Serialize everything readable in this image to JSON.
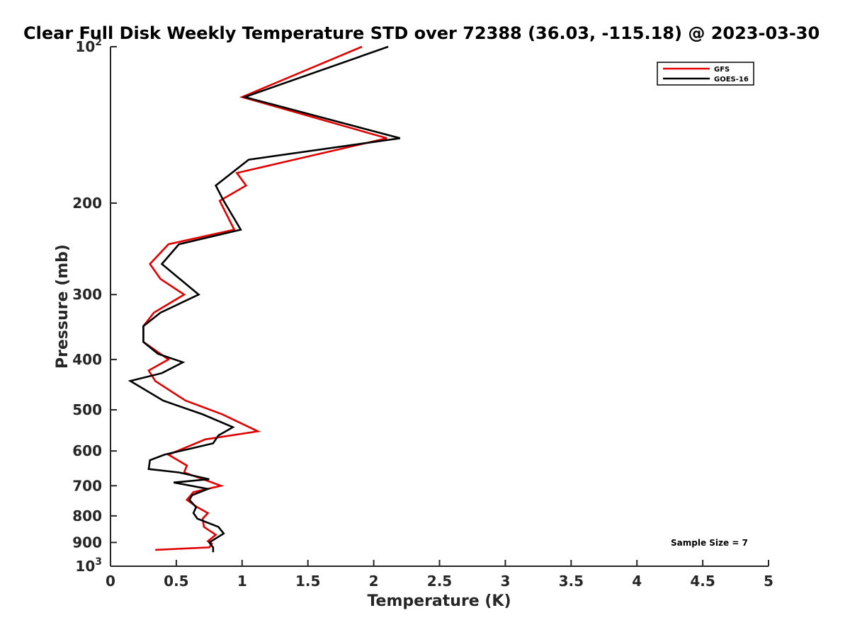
{
  "chart_data": {
    "type": "line",
    "title": "Clear Full Disk Weekly Temperature STD over 72388 (36.03, -115.18) @ 2023-03-30",
    "xlabel": "Temperature (K)",
    "ylabel": "Pressure (mb)",
    "xlim": [
      0,
      5
    ],
    "ylim": [
      100,
      1000
    ],
    "y_scale": "log",
    "y_reversed": true,
    "xticks": [
      0,
      0.5,
      1,
      1.5,
      2,
      2.5,
      3,
      3.5,
      4,
      4.5,
      5
    ],
    "xtick_labels": [
      "0",
      "0.5",
      "1",
      "1.5",
      "2",
      "2.5",
      "3",
      "3.5",
      "4",
      "4.5",
      "5"
    ],
    "yticks": [
      100,
      200,
      300,
      400,
      500,
      600,
      700,
      800,
      900,
      1000
    ],
    "ytick_labels": [
      {
        "base": "10",
        "exp": "2"
      },
      {
        "base": "200",
        "exp": ""
      },
      {
        "base": "300",
        "exp": ""
      },
      {
        "base": "400",
        "exp": ""
      },
      {
        "base": "500",
        "exp": ""
      },
      {
        "base": "600",
        "exp": ""
      },
      {
        "base": "700",
        "exp": ""
      },
      {
        "base": "800",
        "exp": ""
      },
      {
        "base": "900",
        "exp": ""
      },
      {
        "base": "10",
        "exp": "3"
      }
    ],
    "grid": false,
    "legend_position": "top-right",
    "series": [
      {
        "name": "GFS",
        "color": "#e00000",
        "points": [
          [
            1.91,
            100
          ],
          [
            1.0,
            125
          ],
          [
            2.1,
            150
          ],
          [
            0.96,
            175
          ],
          [
            1.03,
            185
          ],
          [
            0.83,
            198
          ],
          [
            0.94,
            225
          ],
          [
            0.44,
            240
          ],
          [
            0.3,
            262
          ],
          [
            0.38,
            280
          ],
          [
            0.56,
            300
          ],
          [
            0.33,
            325
          ],
          [
            0.25,
            345
          ],
          [
            0.25,
            370
          ],
          [
            0.44,
            400
          ],
          [
            0.29,
            420
          ],
          [
            0.34,
            440
          ],
          [
            0.57,
            480
          ],
          [
            0.85,
            510
          ],
          [
            1.12,
            550
          ],
          [
            0.72,
            570
          ],
          [
            0.44,
            610
          ],
          [
            0.58,
            640
          ],
          [
            0.56,
            660
          ],
          [
            0.84,
            700
          ],
          [
            0.63,
            720
          ],
          [
            0.58,
            745
          ],
          [
            0.66,
            770
          ],
          [
            0.74,
            790
          ],
          [
            0.7,
            810
          ],
          [
            0.71,
            840
          ],
          [
            0.8,
            870
          ],
          [
            0.74,
            895
          ],
          [
            0.77,
            905
          ],
          [
            0.75,
            920
          ],
          [
            0.34,
            930
          ]
        ]
      },
      {
        "name": "GOES-16",
        "color": "#000000",
        "points": [
          [
            2.11,
            100
          ],
          [
            1.02,
            125
          ],
          [
            2.2,
            150
          ],
          [
            1.05,
            165
          ],
          [
            0.8,
            185
          ],
          [
            0.86,
            198
          ],
          [
            0.99,
            225
          ],
          [
            0.52,
            240
          ],
          [
            0.39,
            262
          ],
          [
            0.67,
            300
          ],
          [
            0.38,
            325
          ],
          [
            0.25,
            345
          ],
          [
            0.25,
            370
          ],
          [
            0.36,
            390
          ],
          [
            0.55,
            405
          ],
          [
            0.39,
            425
          ],
          [
            0.15,
            440
          ],
          [
            0.4,
            480
          ],
          [
            0.7,
            510
          ],
          [
            0.93,
            540
          ],
          [
            0.82,
            560
          ],
          [
            0.78,
            580
          ],
          [
            0.41,
            610
          ],
          [
            0.3,
            625
          ],
          [
            0.29,
            650
          ],
          [
            0.52,
            660
          ],
          [
            0.75,
            680
          ],
          [
            0.48,
            690
          ],
          [
            0.74,
            710
          ],
          [
            0.62,
            730
          ],
          [
            0.6,
            745
          ],
          [
            0.65,
            770
          ],
          [
            0.63,
            790
          ],
          [
            0.66,
            810
          ],
          [
            0.82,
            840
          ],
          [
            0.86,
            865
          ],
          [
            0.75,
            900
          ],
          [
            0.78,
            920
          ],
          [
            0.78,
            940
          ]
        ]
      }
    ],
    "annotation": "Sample Size = 7"
  }
}
